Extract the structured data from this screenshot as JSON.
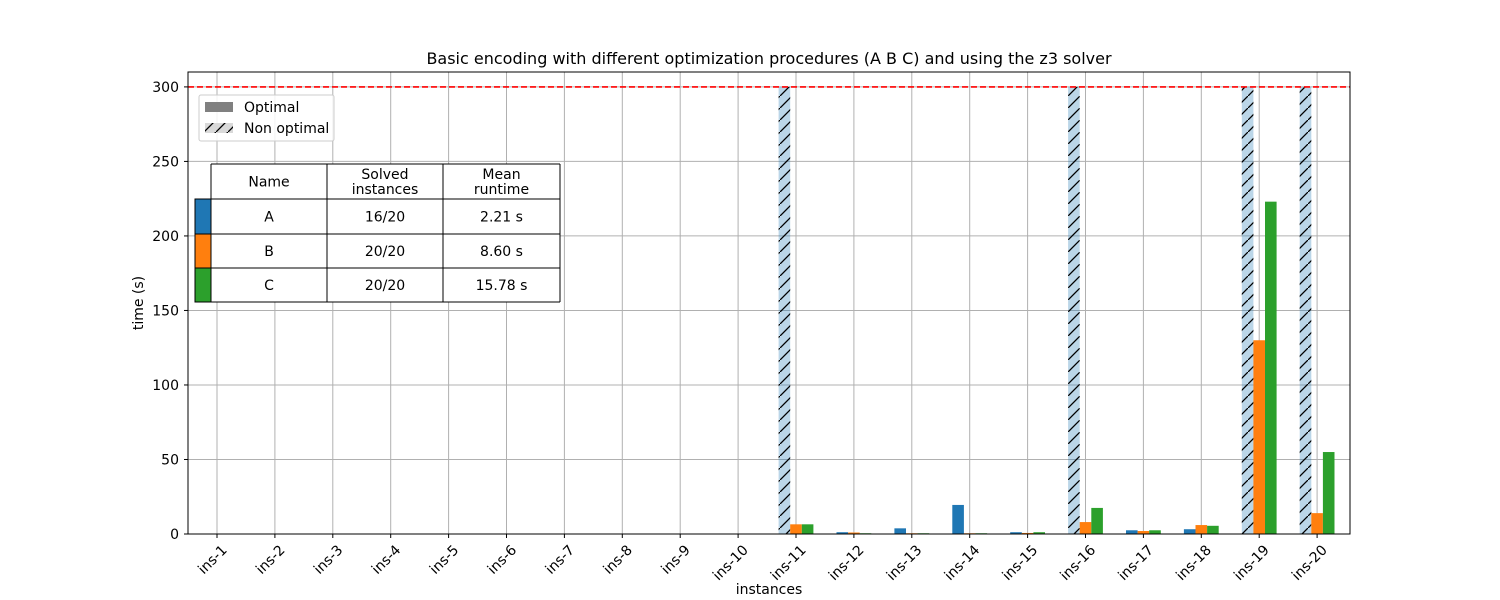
{
  "chart_data": {
    "type": "bar",
    "title": "Basic encoding with different optimization procedures (A B C) and using the z3 solver",
    "xlabel": "instances",
    "ylabel": "time (s)",
    "ylim": [
      0,
      310
    ],
    "yticks": [
      0,
      50,
      100,
      150,
      200,
      250,
      300
    ],
    "grid": true,
    "time_limit": 300,
    "time_limit_color": "#ff0000",
    "categories": [
      "ins-1",
      "ins-2",
      "ins-3",
      "ins-4",
      "ins-5",
      "ins-6",
      "ins-7",
      "ins-8",
      "ins-9",
      "ins-10",
      "ins-11",
      "ins-12",
      "ins-13",
      "ins-14",
      "ins-15",
      "ins-16",
      "ins-17",
      "ins-18",
      "ins-19",
      "ins-20"
    ],
    "series": [
      {
        "name": "A",
        "color": "#1f77b4",
        "values": [
          0.3,
          0.3,
          0,
          0,
          0,
          0,
          0,
          0,
          0,
          0.3,
          300,
          1.2,
          3.8,
          19.5,
          1.2,
          300,
          2.5,
          3.2,
          300,
          300
        ],
        "optimal": [
          true,
          true,
          true,
          true,
          true,
          true,
          true,
          true,
          true,
          true,
          false,
          true,
          true,
          true,
          true,
          false,
          true,
          true,
          false,
          false
        ]
      },
      {
        "name": "B",
        "color": "#ff7f0e",
        "values": [
          0.3,
          0,
          0,
          0,
          0,
          0,
          0,
          0,
          0,
          0,
          6.5,
          1.0,
          0.5,
          0.5,
          0.7,
          8.0,
          2.0,
          6.0,
          130,
          14.0
        ],
        "optimal": [
          true,
          true,
          true,
          true,
          true,
          true,
          true,
          true,
          true,
          true,
          true,
          true,
          true,
          true,
          true,
          true,
          true,
          true,
          true,
          true
        ]
      },
      {
        "name": "C",
        "color": "#2ca02c",
        "values": [
          0,
          0,
          0,
          0,
          0,
          0,
          0,
          0,
          0,
          0,
          6.5,
          0.5,
          0.5,
          0.5,
          1.2,
          17.5,
          2.5,
          5.5,
          223,
          55.0
        ],
        "optimal": [
          true,
          true,
          true,
          true,
          true,
          true,
          true,
          true,
          true,
          true,
          true,
          true,
          true,
          true,
          true,
          true,
          true,
          true,
          true,
          true
        ]
      }
    ],
    "legend": {
      "placement": "top-left",
      "entries": [
        {
          "label": "Optimal",
          "style": "solid",
          "color": "#808080"
        },
        {
          "label": "Non optimal",
          "style": "hatched",
          "color": "#d9d9d9"
        }
      ]
    },
    "table": {
      "headers": [
        "Name",
        "Solved\ninstances",
        "Mean\nruntime"
      ],
      "rows": [
        {
          "color": "#1f77b4",
          "cells": [
            "A",
            "16/20",
            "2.21 s"
          ]
        },
        {
          "color": "#ff7f0e",
          "cells": [
            "B",
            "20/20",
            "8.60 s"
          ]
        },
        {
          "color": "#2ca02c",
          "cells": [
            "C",
            "20/20",
            "15.78 s"
          ]
        }
      ]
    }
  }
}
